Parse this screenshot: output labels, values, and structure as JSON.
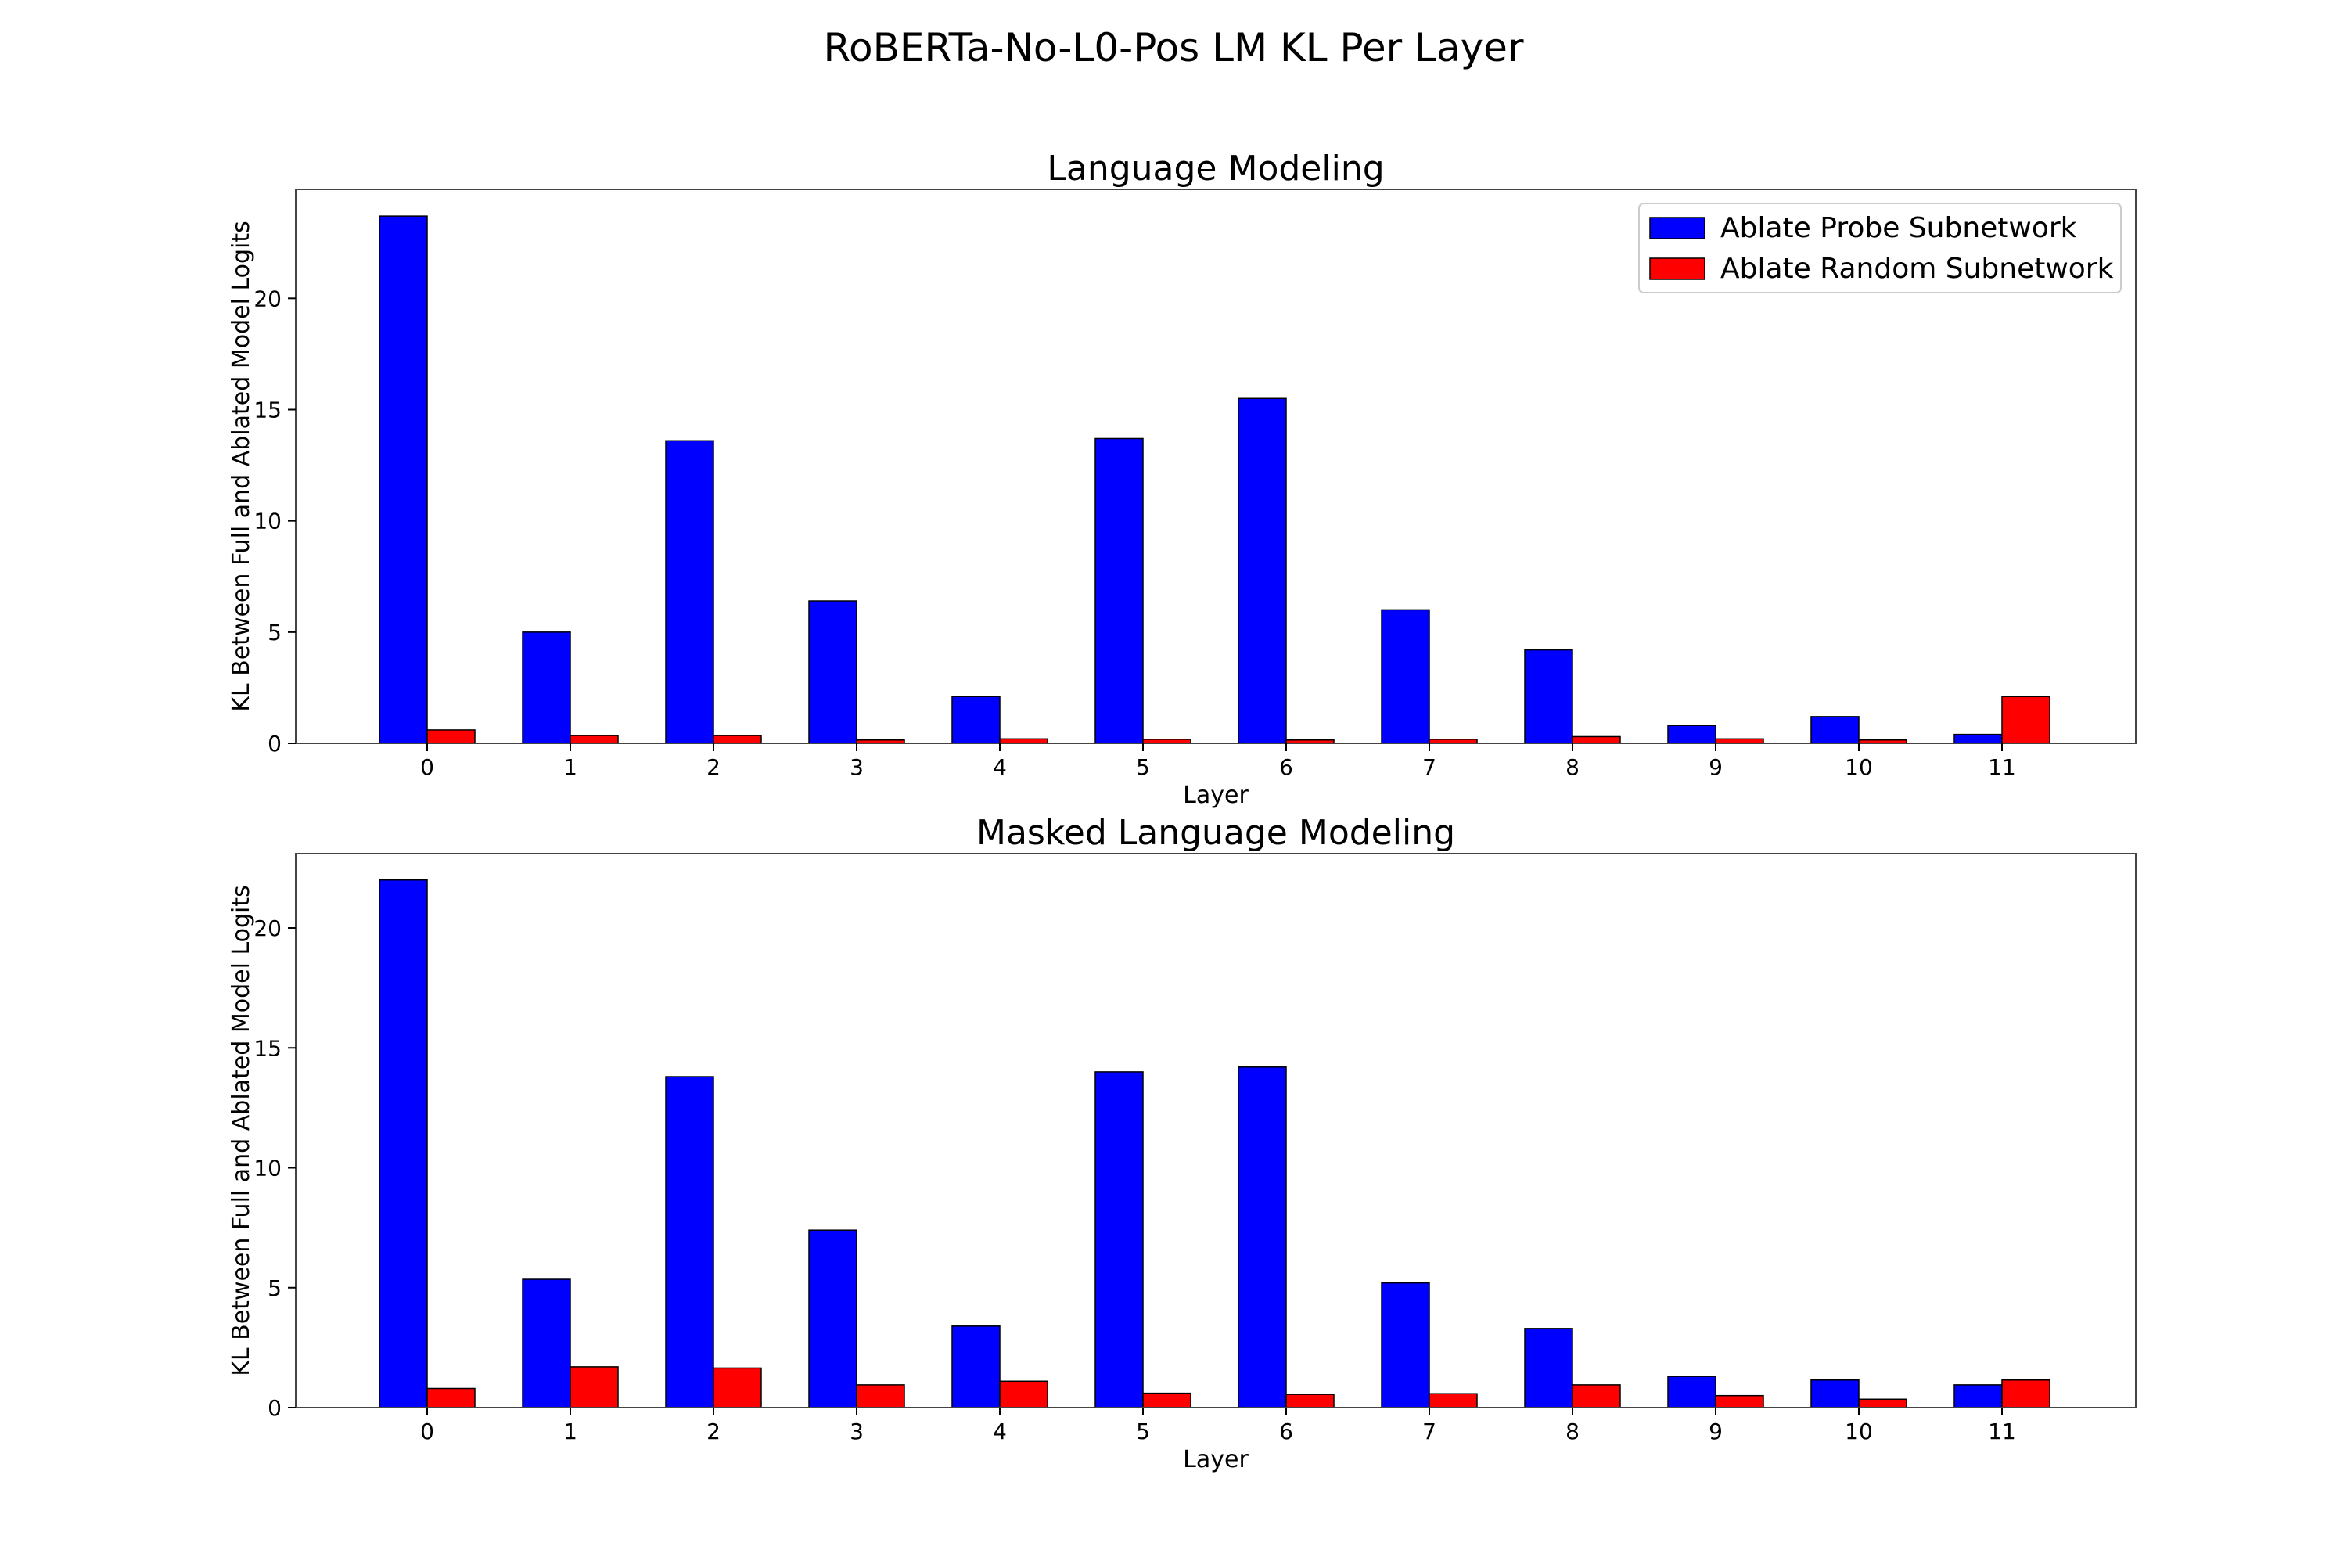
{
  "figure": {
    "title": "RoBERTa-No-L0-Pos LM KL Per Layer"
  },
  "colors": {
    "probe": "#0000ff",
    "random": "#ff0000",
    "edge": "#000000",
    "frame": "#444444"
  },
  "chart_data": [
    {
      "type": "bar",
      "title": "Language Modeling",
      "xlabel": "Layer",
      "ylabel": "KL Between Full and Ablated Model Logits",
      "categories": [
        "0",
        "1",
        "2",
        "3",
        "4",
        "5",
        "6",
        "7",
        "8",
        "9",
        "10",
        "11"
      ],
      "ylim": [
        0,
        24.9
      ],
      "yticks": [
        0,
        5,
        10,
        15,
        20
      ],
      "grid": false,
      "legend": {
        "position": "top-right",
        "entries": [
          "Ablate Probe Subnetwork",
          "Ablate Random Subnetwork"
        ]
      },
      "series": [
        {
          "name": "Ablate Probe Subnetwork",
          "color": "#0000ff",
          "values": [
            23.7,
            5.0,
            13.6,
            6.4,
            2.1,
            13.7,
            15.5,
            6.0,
            4.2,
            0.8,
            1.2,
            0.4
          ]
        },
        {
          "name": "Ablate Random Subnetwork",
          "color": "#ff0000",
          "values": [
            0.6,
            0.35,
            0.35,
            0.15,
            0.2,
            0.18,
            0.15,
            0.18,
            0.3,
            0.2,
            0.15,
            2.1
          ]
        }
      ]
    },
    {
      "type": "bar",
      "title": "Masked Language Modeling",
      "xlabel": "Layer",
      "ylabel": "KL Between Full and Ablated Model Logits",
      "categories": [
        "0",
        "1",
        "2",
        "3",
        "4",
        "5",
        "6",
        "7",
        "8",
        "9",
        "10",
        "11"
      ],
      "ylim": [
        0,
        23.1
      ],
      "yticks": [
        0,
        5,
        10,
        15,
        20
      ],
      "grid": false,
      "series": [
        {
          "name": "Ablate Probe Subnetwork",
          "color": "#0000ff",
          "values": [
            22.0,
            5.35,
            13.8,
            7.4,
            3.4,
            14.0,
            14.2,
            5.2,
            3.3,
            1.3,
            1.15,
            0.95
          ]
        },
        {
          "name": "Ablate Random Subnetwork",
          "color": "#ff0000",
          "values": [
            0.8,
            1.7,
            1.65,
            0.95,
            1.1,
            0.6,
            0.55,
            0.58,
            0.95,
            0.5,
            0.35,
            1.15
          ]
        }
      ]
    }
  ]
}
